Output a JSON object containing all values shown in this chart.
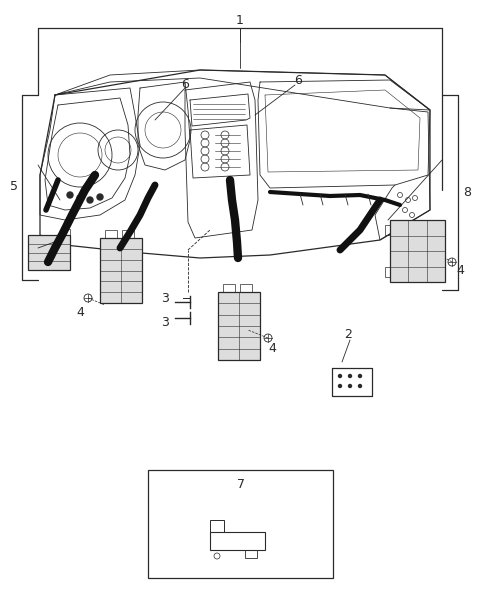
{
  "bg_color": "#ffffff",
  "line_color": "#2a2a2a",
  "fig_width": 4.8,
  "fig_height": 5.92,
  "dpi": 100,
  "label_fs": 8,
  "thin": 0.6,
  "med": 0.9,
  "thick": 2.5,
  "wire_color": "#111111",
  "gray_fill": "#bbbbbb",
  "light_gray": "#dddddd",
  "mid_gray": "#888888"
}
